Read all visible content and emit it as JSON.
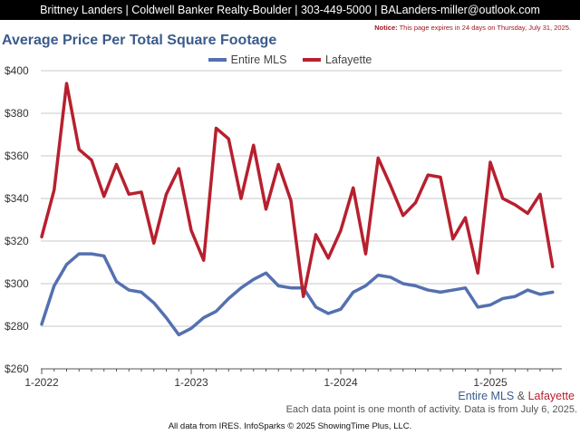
{
  "header": {
    "text": "Brittney Landers | Coldwell Banker Realty-Boulder | 303-449-5000 | BALanders-miller@outlook.com"
  },
  "notice": {
    "label": "Notice:",
    "text": " This page expires in 24 days on Thursday, July 31, 2025."
  },
  "chart_data": {
    "type": "line",
    "title": "Average Price Per Total Square Footage",
    "xlabel": "",
    "ylabel": "",
    "ylim": [
      260,
      400
    ],
    "y_ticks": [
      260,
      280,
      300,
      320,
      340,
      360,
      380,
      400
    ],
    "y_tick_labels": [
      "$260",
      "$280",
      "$300",
      "$320",
      "$340",
      "$360",
      "$380",
      "$400"
    ],
    "x": [
      "1-2022",
      "2-2022",
      "3-2022",
      "4-2022",
      "5-2022",
      "6-2022",
      "7-2022",
      "8-2022",
      "9-2022",
      "10-2022",
      "11-2022",
      "12-2022",
      "1-2023",
      "2-2023",
      "3-2023",
      "4-2023",
      "5-2023",
      "6-2023",
      "7-2023",
      "8-2023",
      "9-2023",
      "10-2023",
      "11-2023",
      "12-2023",
      "1-2024",
      "2-2024",
      "3-2024",
      "4-2024",
      "5-2024",
      "6-2024",
      "7-2024",
      "8-2024",
      "9-2024",
      "10-2024",
      "11-2024",
      "12-2024",
      "1-2025",
      "2-2025",
      "3-2025",
      "4-2025",
      "5-2025",
      "6-2025"
    ],
    "x_tick_labels": [
      "1-2022",
      "1-2023",
      "1-2024",
      "1-2025"
    ],
    "grid": true,
    "legend_position": "top-center",
    "series": [
      {
        "name": "Entire MLS",
        "color": "#5470b0",
        "values": [
          281,
          299,
          309,
          314,
          314,
          313,
          301,
          297,
          296,
          291,
          284,
          276,
          279,
          284,
          287,
          293,
          298,
          302,
          305,
          299,
          298,
          298,
          289,
          286,
          288,
          296,
          299,
          304,
          303,
          300,
          299,
          297,
          296,
          297,
          298,
          289,
          290,
          293,
          294,
          297,
          295,
          296
        ]
      },
      {
        "name": "Lafayette",
        "color": "#b7202e",
        "values": [
          322,
          344,
          394,
          363,
          358,
          341,
          356,
          342,
          343,
          319,
          342,
          354,
          325,
          311,
          373,
          368,
          340,
          365,
          335,
          356,
          339,
          294,
          323,
          312,
          325,
          345,
          314,
          359,
          346,
          332,
          338,
          351,
          350,
          321,
          331,
          305,
          357,
          340,
          337,
          333,
          342,
          308
        ]
      }
    ]
  },
  "caption": {
    "first": "Entire MLS",
    "amp": " & ",
    "second": "Lafayette"
  },
  "note": "Each data point is one month of activity. Data is from July 6, 2025.",
  "footer": "All data from IRES. InfoSparks © 2025 ShowingTime Plus, LLC."
}
